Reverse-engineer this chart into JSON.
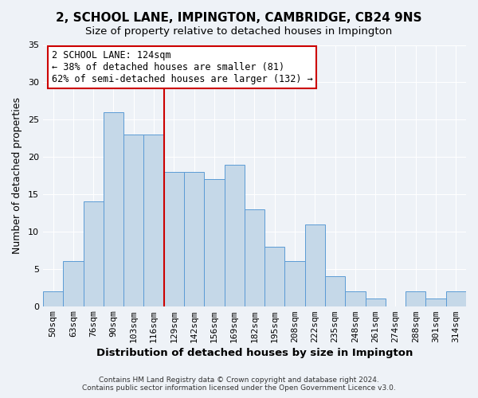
{
  "title": "2, SCHOOL LANE, IMPINGTON, CAMBRIDGE, CB24 9NS",
  "subtitle": "Size of property relative to detached houses in Impington",
  "xlabel": "Distribution of detached houses by size in Impington",
  "ylabel": "Number of detached properties",
  "bar_labels": [
    "50sqm",
    "63sqm",
    "76sqm",
    "90sqm",
    "103sqm",
    "116sqm",
    "129sqm",
    "142sqm",
    "156sqm",
    "169sqm",
    "182sqm",
    "195sqm",
    "208sqm",
    "222sqm",
    "235sqm",
    "248sqm",
    "261sqm",
    "274sqm",
    "288sqm",
    "301sqm",
    "314sqm"
  ],
  "bar_values": [
    2,
    6,
    14,
    26,
    23,
    23,
    18,
    18,
    17,
    19,
    13,
    8,
    6,
    11,
    4,
    2,
    1,
    0,
    2,
    1,
    2
  ],
  "bar_color": "#c5d8e8",
  "bar_edge_color": "#5b9bd5",
  "vline_x": 6.5,
  "vline_color": "#cc0000",
  "annotation_text": "2 SCHOOL LANE: 124sqm\n← 38% of detached houses are smaller (81)\n62% of semi-detached houses are larger (132) →",
  "annotation_box_facecolor": "#ffffff",
  "annotation_box_edgecolor": "#cc0000",
  "ylim": [
    0,
    35
  ],
  "yticks": [
    0,
    5,
    10,
    15,
    20,
    25,
    30,
    35
  ],
  "footer_line1": "Contains HM Land Registry data © Crown copyright and database right 2024.",
  "footer_line2": "Contains public sector information licensed under the Open Government Licence v3.0.",
  "bg_color": "#eef2f7",
  "plot_bg_color": "#eef2f7",
  "grid_color": "#ffffff",
  "title_fontsize": 11,
  "subtitle_fontsize": 9.5,
  "xlabel_fontsize": 9.5,
  "ylabel_fontsize": 9,
  "tick_fontsize": 8,
  "annot_fontsize": 8.5,
  "footer_fontsize": 6.5
}
